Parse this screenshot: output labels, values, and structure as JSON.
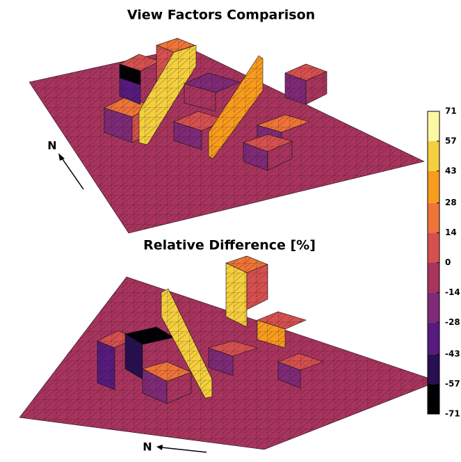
{
  "title": "View Factors Comparison",
  "subtitle": "Relative Difference [%]",
  "north_labels": [
    "N",
    "N"
  ],
  "colorbar": {
    "lim": [
      -71,
      71
    ],
    "ticks": [
      71,
      57,
      43,
      28,
      14,
      0,
      -14,
      -28,
      -43,
      -57,
      -71
    ],
    "colors": [
      "#fbf7a2",
      "#f4cf3e",
      "#f89c1e",
      "#ee7438",
      "#d5504f",
      "#a8345e",
      "#7e2a76",
      "#571a7e",
      "#280f50",
      "#000004"
    ]
  }
}
